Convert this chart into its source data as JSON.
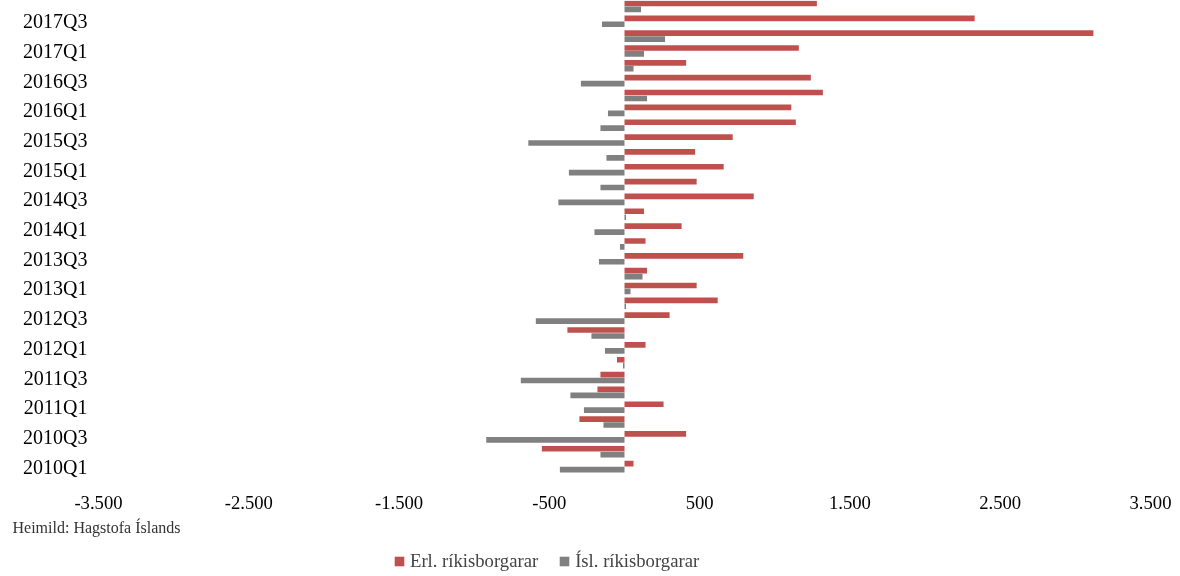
{
  "chart_data": {
    "type": "bar",
    "orientation": "horizontal",
    "categories": [
      null,
      "2017Q3",
      null,
      "2017Q1",
      null,
      "2016Q3",
      null,
      "2016Q1",
      null,
      "2015Q3",
      null,
      "2015Q1",
      null,
      "2014Q3",
      null,
      "2014Q1",
      null,
      "2013Q3",
      null,
      "2013Q1",
      null,
      "2012Q3",
      null,
      "2012Q1",
      null,
      "2011Q3",
      null,
      "2011Q1",
      null,
      "2010Q3",
      null,
      "2010Q1"
    ],
    "series": [
      {
        "name": "Erl. ríkisborgarar",
        "color": "#c0504d",
        "values": [
          1280,
          2330,
          3120,
          1160,
          410,
          1240,
          1320,
          1110,
          1140,
          720,
          470,
          660,
          480,
          860,
          130,
          380,
          140,
          790,
          150,
          480,
          620,
          300,
          -380,
          140,
          -50,
          -160,
          -180,
          260,
          -300,
          410,
          -550,
          60
        ]
      },
      {
        "name": "Ísl. ríkisborgarar",
        "color": "#808080",
        "values": [
          110,
          -150,
          270,
          130,
          60,
          -290,
          150,
          -110,
          -160,
          -640,
          -120,
          -370,
          -160,
          -440,
          10,
          -200,
          -30,
          -170,
          120,
          40,
          10,
          -590,
          -220,
          -130,
          -10,
          -690,
          -360,
          -270,
          -140,
          -920,
          -160,
          -430
        ]
      }
    ],
    "xlim": [
      -3500,
      3500
    ],
    "xticks": [
      {
        "value": -3500,
        "label": "-3.500"
      },
      {
        "value": -2500,
        "label": "-2.500"
      },
      {
        "value": -1500,
        "label": "-1.500"
      },
      {
        "value": -500,
        "label": "-500"
      },
      {
        "value": 500,
        "label": "500"
      },
      {
        "value": 1500,
        "label": "1.500"
      },
      {
        "value": 2500,
        "label": "2.500"
      },
      {
        "value": 3500,
        "label": "3.500"
      }
    ],
    "grid": false,
    "legend": "bottom",
    "annotations": [
      "Heimild: Hagstofa Íslands"
    ]
  }
}
